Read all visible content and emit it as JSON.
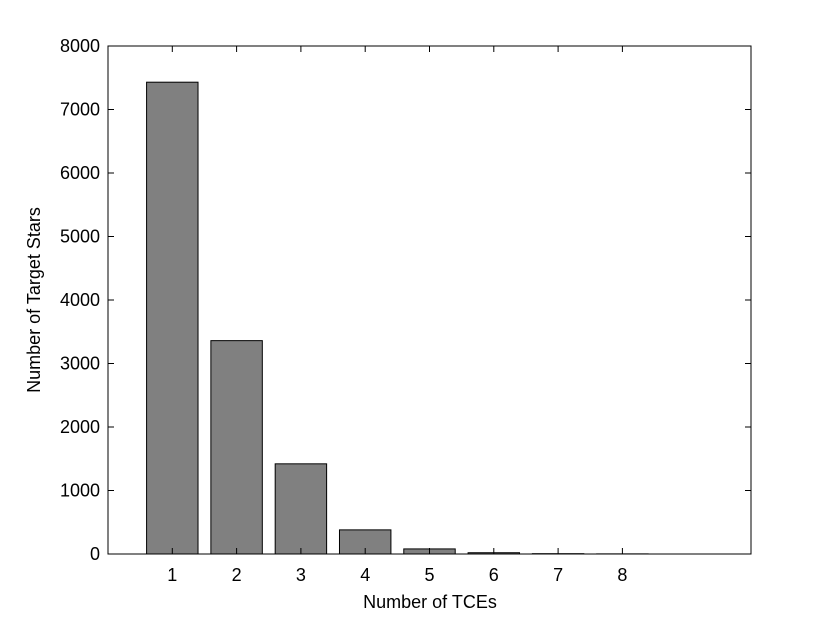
{
  "chart_data": {
    "type": "bar",
    "xlabel": "Number of TCEs",
    "ylabel": "Number of Target Stars",
    "x": [
      1,
      2,
      3,
      4,
      5,
      6,
      7,
      8
    ],
    "values": [
      7430,
      3360,
      1420,
      380,
      80,
      20,
      5,
      2
    ],
    "color": "#808080",
    "xlim": [
      0,
      10
    ],
    "xticks": [
      1,
      2,
      3,
      4,
      5,
      6,
      7,
      8
    ],
    "ylim": [
      0,
      8000
    ],
    "yticks": [
      0,
      1000,
      2000,
      3000,
      4000,
      5000,
      6000,
      7000,
      8000
    ],
    "grid": false
  }
}
